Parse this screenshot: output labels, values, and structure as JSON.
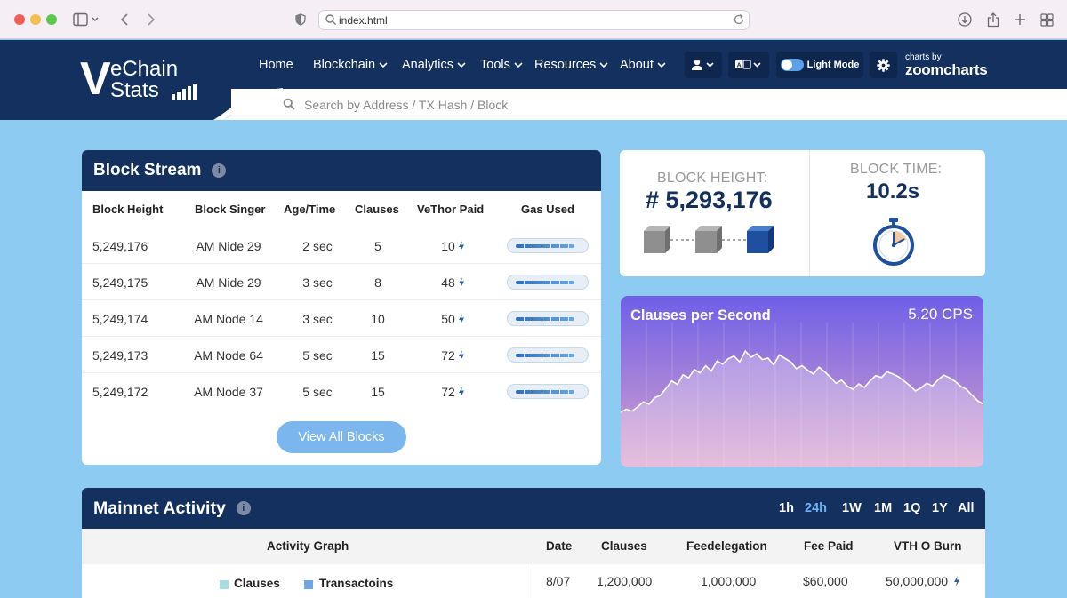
{
  "browser": {
    "address": "index.html"
  },
  "nav": {
    "items": [
      "Home",
      "Blockchain",
      "Analytics",
      "Tools",
      "Resources",
      "About"
    ],
    "light_mode_label": "Light Mode",
    "zoomcharts_small": "charts by",
    "zoomcharts_big": "zoomcharts",
    "logo_line1": "eChain",
    "logo_line2": "Stats",
    "logo_v": "V"
  },
  "search": {
    "placeholder": "Search by Address / TX Hash / Block"
  },
  "block_stream": {
    "title": "Block Stream",
    "info": "i",
    "columns": [
      "Block Height",
      "Block Singer",
      "Age/Time",
      "Clauses",
      "VeThor Paid",
      "Gas Used"
    ],
    "rows": [
      {
        "height": "5,249,176",
        "signer": "AM Nide 29",
        "age": "2 sec",
        "clauses": "5",
        "vethor": "10",
        "gas": 0.82
      },
      {
        "height": "5,249,175",
        "signer": "AM Nide 29",
        "age": "3 sec",
        "clauses": "8",
        "vethor": "48",
        "gas": 0.82
      },
      {
        "height": "5,249,174",
        "signer": "AM Node 14",
        "age": "3 sec",
        "clauses": "10",
        "vethor": "50",
        "gas": 0.82
      },
      {
        "height": "5,249,173",
        "signer": "AM Node 64",
        "age": "5 sec",
        "clauses": "15",
        "vethor": "72",
        "gas": 0.82
      },
      {
        "height": "5,249,172",
        "signer": "AM Node 37",
        "age": "5 sec",
        "clauses": "15",
        "vethor": "72",
        "gas": 0.82
      }
    ],
    "view_all_label": "View All Blocks"
  },
  "block_height": {
    "label": "BLOCK HEIGHT:",
    "value": "# 5,293,176"
  },
  "block_time": {
    "label": "BLOCK TIME:",
    "value": "10.2s"
  },
  "clauses_per_second": {
    "title": "Clauses per Second",
    "value": "5.20 CPS"
  },
  "chart_data": {
    "type": "area",
    "title": "Clauses per Second",
    "values": [
      28,
      36,
      31,
      42,
      55,
      49,
      66,
      72,
      90,
      110,
      101,
      126,
      118,
      140,
      131,
      150,
      136,
      162,
      154,
      168,
      175,
      160,
      188,
      172,
      181,
      166,
      170,
      152,
      178,
      169,
      160,
      142,
      150,
      138,
      128,
      146,
      134,
      120,
      104,
      112,
      96,
      88,
      102,
      93,
      110,
      124,
      119,
      134,
      128,
      121,
      110,
      98,
      84,
      92,
      104,
      97,
      113,
      125,
      118,
      109,
      96,
      88,
      72,
      58,
      49
    ]
  },
  "mainnet": {
    "title": "Mainnet Activity",
    "info": "i",
    "ranges": [
      "1h",
      "24h",
      "1W",
      "1M",
      "1Q",
      "1Y",
      "All"
    ],
    "active_range": "24h",
    "graph_label": "Activity Graph",
    "columns": [
      "Date",
      "Clauses",
      "Feedelegation",
      "Fee Paid",
      "VTH O Burn"
    ],
    "legend": [
      {
        "label": "Clauses",
        "color": "#a7dde0"
      },
      {
        "label": "Transactoins",
        "color": "#6fa7e6"
      }
    ],
    "row": {
      "date": "8/07",
      "clauses": "1,200,000",
      "feedelegation": "1,000,000",
      "fee_paid": "$60,000",
      "burn": "50,000,000"
    }
  },
  "colors": {
    "navy": "#13305f",
    "sky": "#8ecbf3",
    "accent": "#7bb6ef"
  }
}
